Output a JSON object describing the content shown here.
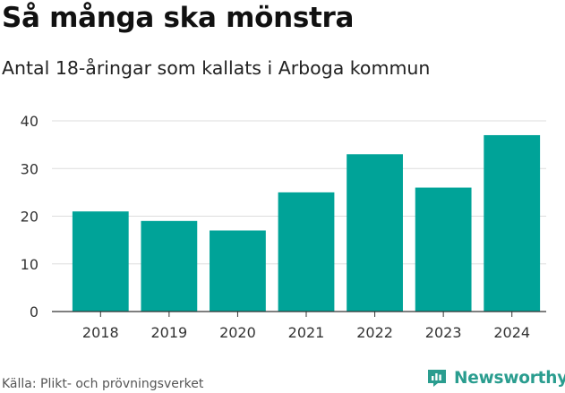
{
  "title": "Så många ska mönstra",
  "subtitle": "Antal 18-åringar som kallats i Arboga kommun",
  "source": "Källa: Plikt- och prövningsverket",
  "brand": {
    "name": "Newsworthy",
    "color": "#2a9d8f",
    "icon": "newsworthy-logo-icon"
  },
  "colors": {
    "bar": "#00a398",
    "grid": "#dddddd",
    "axis": "#333333",
    "text": "#333333"
  },
  "chart_data": {
    "type": "bar",
    "categories": [
      "2018",
      "2019",
      "2020",
      "2021",
      "2022",
      "2023",
      "2024"
    ],
    "values": [
      21,
      19,
      17,
      25,
      33,
      26,
      37
    ],
    "yticks": [
      0,
      10,
      20,
      30,
      40
    ],
    "ylim": [
      0,
      40
    ],
    "grid": true,
    "legend": "none",
    "xlabel": "",
    "ylabel": ""
  }
}
